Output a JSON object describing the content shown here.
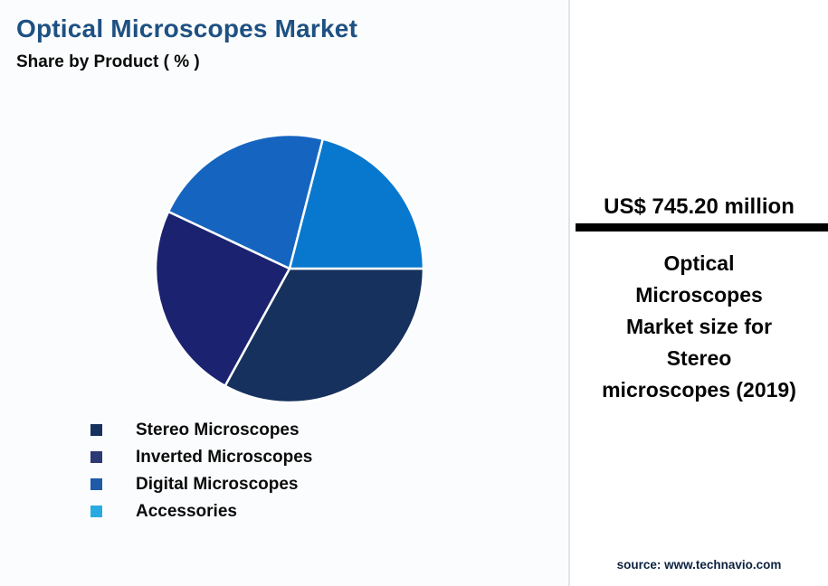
{
  "header": {
    "title": "Optical Microscopes Market",
    "subtitle": "Share by Product ( % )"
  },
  "chart_data": {
    "type": "pie",
    "title": "Optical Microscopes Market",
    "subtitle": "Share by Product ( % )",
    "unit": "%",
    "legend_position": "bottom-left",
    "start_angle_deg_clockwise_from_12": 90,
    "slices": [
      {
        "label": "Stereo Microscopes",
        "value": 33,
        "color": "#16315D",
        "swatch": "#16315D"
      },
      {
        "label": "Inverted Microscopes",
        "value": 24,
        "color": "#1B2370",
        "swatch": "#2B3A73"
      },
      {
        "label": "Digital Microscopes",
        "value": 22,
        "color": "#1565C0",
        "swatch": "#1E5AA8"
      },
      {
        "label": "Accessories",
        "value": 21,
        "color": "#0878CE",
        "swatch": "#29ABE2"
      }
    ]
  },
  "panel": {
    "headline": "US$ 745.20 million",
    "description": "Optical Microscopes Market size for Stereo microscopes (2019)",
    "source": "source: www.technavio.com"
  },
  "colors": {
    "title_text": "#1E5182",
    "accent_bar": "#000000",
    "source_text": "#0D2240",
    "pie_slice_border": "#FFFFFF"
  }
}
